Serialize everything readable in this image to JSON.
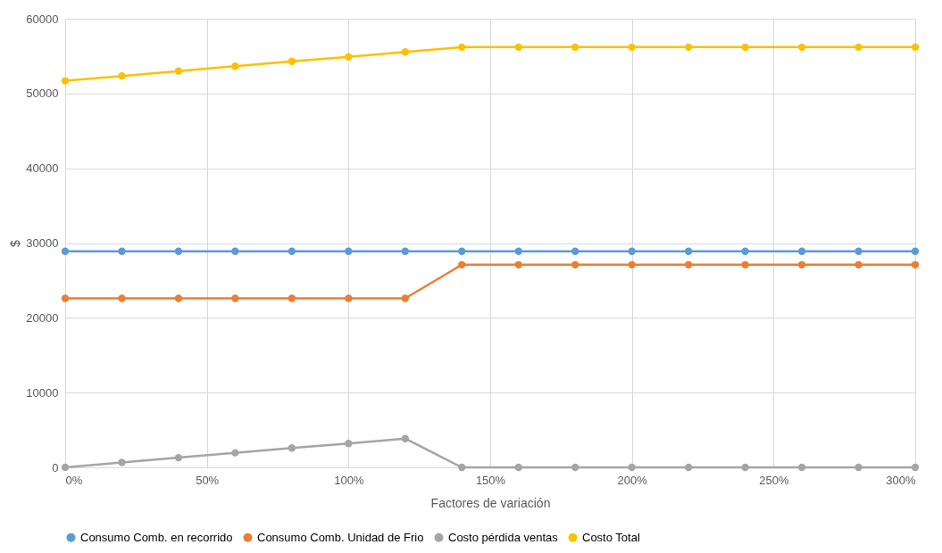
{
  "chart_data": {
    "type": "line",
    "xlabel": "Factores de variación",
    "ylabel": "$",
    "x": [
      0,
      20,
      40,
      60,
      80,
      100,
      120,
      140,
      160,
      180,
      200,
      220,
      240,
      260,
      280,
      300
    ],
    "xlim": [
      0,
      300
    ],
    "xticks": [
      {
        "value": 0,
        "label": "0%"
      },
      {
        "value": 50,
        "label": "50%"
      },
      {
        "value": 100,
        "label": "100%"
      },
      {
        "value": 150,
        "label": "150%"
      },
      {
        "value": 200,
        "label": "200%"
      },
      {
        "value": 250,
        "label": "250%"
      },
      {
        "value": 300,
        "label": "300%"
      }
    ],
    "ylim": [
      0,
      60000
    ],
    "yticks": [
      0,
      10000,
      20000,
      30000,
      40000,
      50000,
      60000
    ],
    "grid": true,
    "legend": "bottom",
    "marker": "circle",
    "line_style": "solid",
    "series": [
      {
        "name": "Consumo Comb. en recorrido",
        "color": "#5b9bd5",
        "values": [
          28900,
          28900,
          28900,
          28900,
          28900,
          28900,
          28900,
          28900,
          28900,
          28900,
          28900,
          28900,
          28900,
          28900,
          28900,
          28900
        ]
      },
      {
        "name": "Consumo Comb. Unidad de Frio",
        "color": "#ed7d31",
        "values": [
          22600,
          22600,
          22600,
          22600,
          22600,
          22600,
          22600,
          27100,
          27100,
          27100,
          27100,
          27100,
          27100,
          27100,
          27100,
          27100
        ]
      },
      {
        "name": "Costo pérdida ventas",
        "color": "#a5a5a5",
        "values": [
          0,
          650,
          1300,
          1950,
          2600,
          3200,
          3850,
          0,
          0,
          0,
          0,
          0,
          0,
          0,
          0,
          0
        ]
      },
      {
        "name": "Costo Total",
        "color": "#ffc000",
        "values": [
          51700,
          52350,
          53000,
          53650,
          54300,
          54900,
          55550,
          56200,
          56200,
          56200,
          56200,
          56200,
          56200,
          56200,
          56200,
          56200
        ]
      }
    ]
  }
}
